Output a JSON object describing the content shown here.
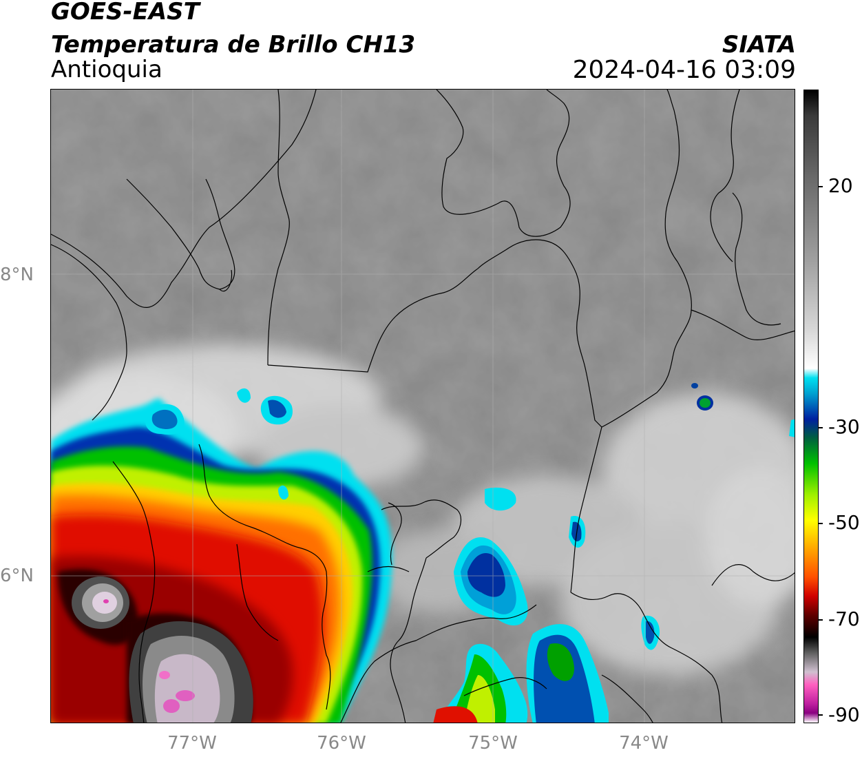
{
  "header": {
    "title_line1": "GOES-EAST",
    "title_line2": "Temperatura de Brillo CH13",
    "region": "Antioquia",
    "organization": "SIATA",
    "datetime": "2024-04-16 03:09"
  },
  "map": {
    "lat_labels": [
      "8°N",
      "6°N"
    ],
    "lon_labels": [
      "77°W",
      "76°W",
      "75°W",
      "74°W"
    ],
    "background_color": "#8a8a8a",
    "border_color": "#000000",
    "grid_color": "#b0b0b0"
  },
  "colorbar": {
    "ticks": [
      "20",
      "-30",
      "-50",
      "-70",
      "-90"
    ],
    "palette": [
      "#000000",
      "#3a3a3a",
      "#6a6a6a",
      "#a0a0a0",
      "#d8d8d8",
      "#ffffff",
      "#00e0f0",
      "#00a0d0",
      "#0020a0",
      "#006040",
      "#00c000",
      "#a0f000",
      "#ffff00",
      "#ffb000",
      "#ff5000",
      "#d00000",
      "#600000",
      "#000000",
      "#606060",
      "#d0c0d0",
      "#ff60c0",
      "#c020a0",
      "#8a0080",
      "#ffffff"
    ]
  }
}
